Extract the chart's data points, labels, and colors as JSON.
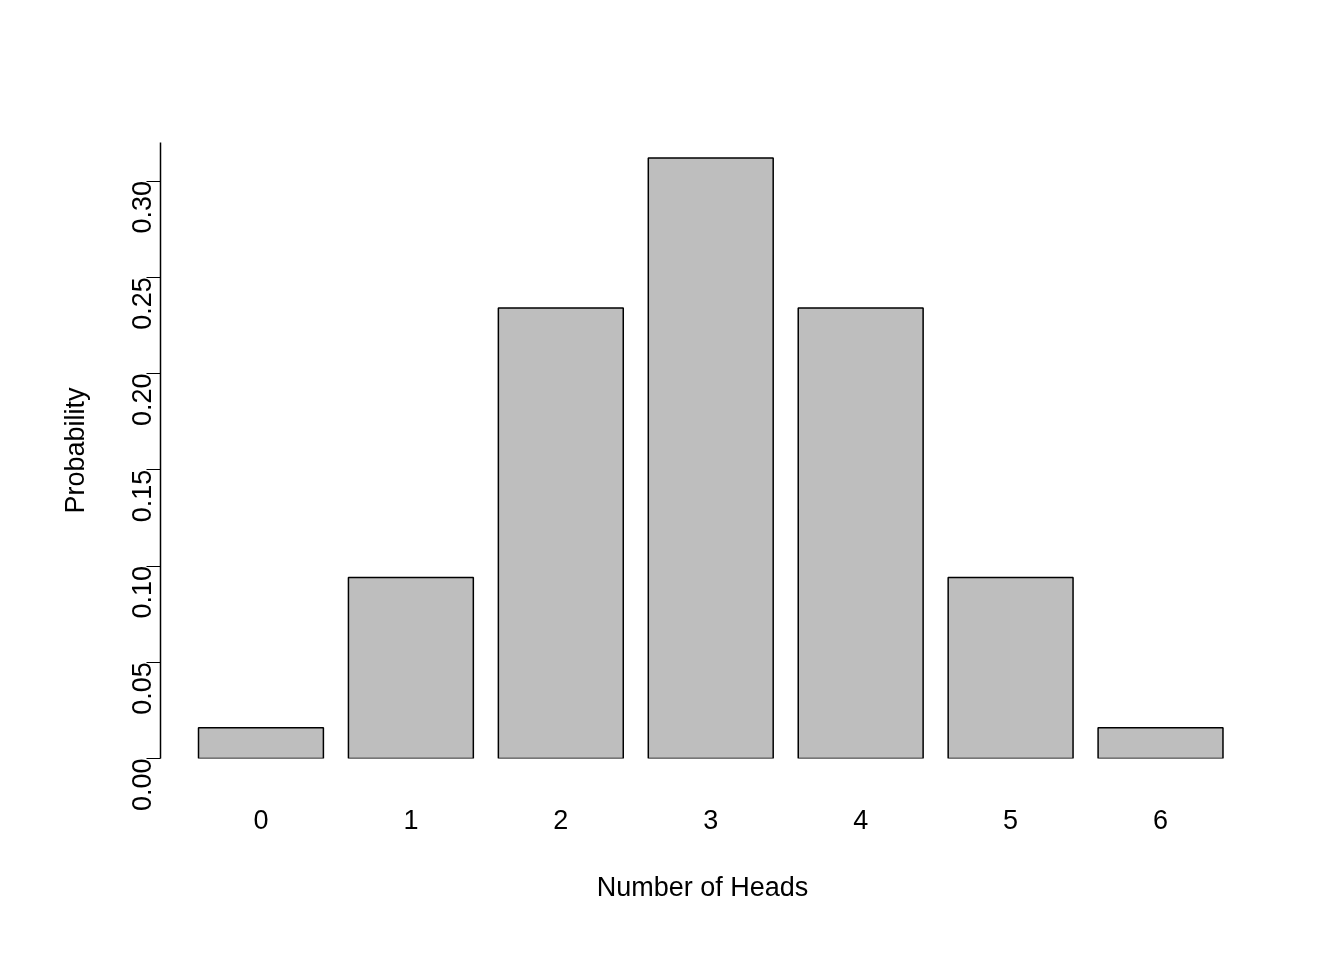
{
  "chart_data": {
    "type": "bar",
    "xlabel": "Number of Heads",
    "ylabel": "Probability",
    "categories": [
      "0",
      "1",
      "2",
      "3",
      "4",
      "5",
      "6"
    ],
    "values": [
      0.016,
      0.094,
      0.234,
      0.312,
      0.234,
      0.094,
      0.016
    ],
    "color": "#bebebe",
    "ylim": [
      0,
      0.32
    ],
    "yticks": [
      {
        "value": 0,
        "label": "0.00"
      },
      {
        "value": 0.05,
        "label": "0.05"
      },
      {
        "value": 0.1,
        "label": "0.10"
      },
      {
        "value": 0.15,
        "label": "0.15"
      },
      {
        "value": 0.2,
        "label": "0.20"
      },
      {
        "value": 0.25,
        "label": "0.25"
      },
      {
        "value": 0.3,
        "label": "0.30"
      }
    ],
    "grid": false
  }
}
